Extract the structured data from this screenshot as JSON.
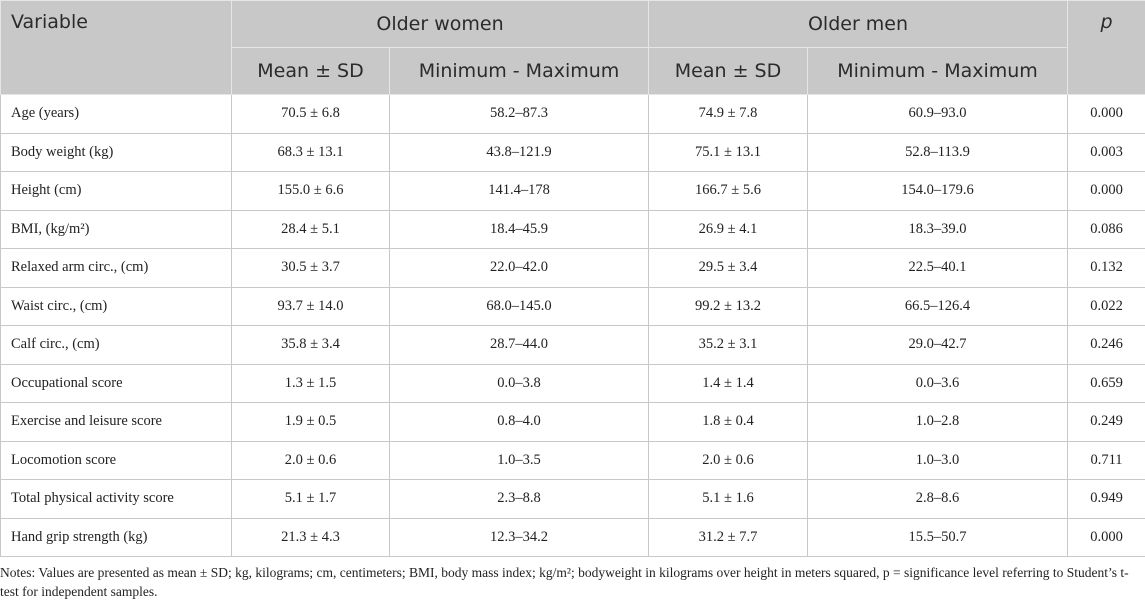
{
  "table": {
    "header": {
      "variable": "Variable",
      "groups": [
        "Older women",
        "Older men"
      ],
      "p": "p",
      "subheaders": [
        "Mean ± SD",
        "Minimum - Maximum",
        "Mean ± SD",
        "Minimum - Maximum"
      ]
    },
    "rows": [
      [
        "Age (years)",
        "70.5 ± 6.8",
        "58.2–87.3",
        "74.9 ± 7.8",
        "60.9–93.0",
        "0.000"
      ],
      [
        "Body weight (kg)",
        "68.3 ± 13.1",
        "43.8–121.9",
        "75.1 ± 13.1",
        "52.8–113.9",
        "0.003"
      ],
      [
        "Height (cm)",
        "155.0 ± 6.6",
        "141.4–178",
        "166.7 ± 5.6",
        "154.0–179.6",
        "0.000"
      ],
      [
        "BMI, (kg/m²)",
        "28.4 ± 5.1",
        "18.4–45.9",
        "26.9 ± 4.1",
        "18.3–39.0",
        "0.086"
      ],
      [
        "Relaxed arm circ., (cm)",
        "30.5 ± 3.7",
        "22.0–42.0",
        "29.5 ± 3.4",
        "22.5–40.1",
        "0.132"
      ],
      [
        "Waist circ., (cm)",
        "93.7 ± 14.0",
        "68.0–145.0",
        "99.2 ± 13.2",
        "66.5–126.4",
        "0.022"
      ],
      [
        "Calf circ., (cm)",
        "35.8 ± 3.4",
        "28.7–44.0",
        "35.2 ± 3.1",
        "29.0–42.7",
        "0.246"
      ],
      [
        "Occupational score",
        "1.3 ± 1.5",
        "0.0–3.8",
        "1.4 ± 1.4",
        "0.0–3.6",
        "0.659"
      ],
      [
        "Exercise and leisure score",
        "1.9 ± 0.5",
        "0.8–4.0",
        "1.8 ± 0.4",
        "1.0–2.8",
        "0.249"
      ],
      [
        "Locomotion score",
        "2.0 ± 0.6",
        "1.0–3.5",
        "2.0 ± 0.6",
        "1.0–3.0",
        "0.711"
      ],
      [
        "Total physical activity score",
        "5.1 ± 1.7",
        "2.3–8.8",
        "5.1 ± 1.6",
        "2.8–8.6",
        "0.949"
      ],
      [
        "Hand grip strength (kg)",
        "21.3 ± 4.3",
        "12.3–34.2",
        "31.2 ± 7.7",
        "15.5–50.7",
        "0.000"
      ]
    ]
  },
  "notes": "Notes: Values are presented as mean ± SD; kg, kilograms; cm, centimeters; BMI, body mass index; kg/m²; bodyweight in kilograms over height in meters squared, p = significance level referring to Student’s t-test for independent samples."
}
